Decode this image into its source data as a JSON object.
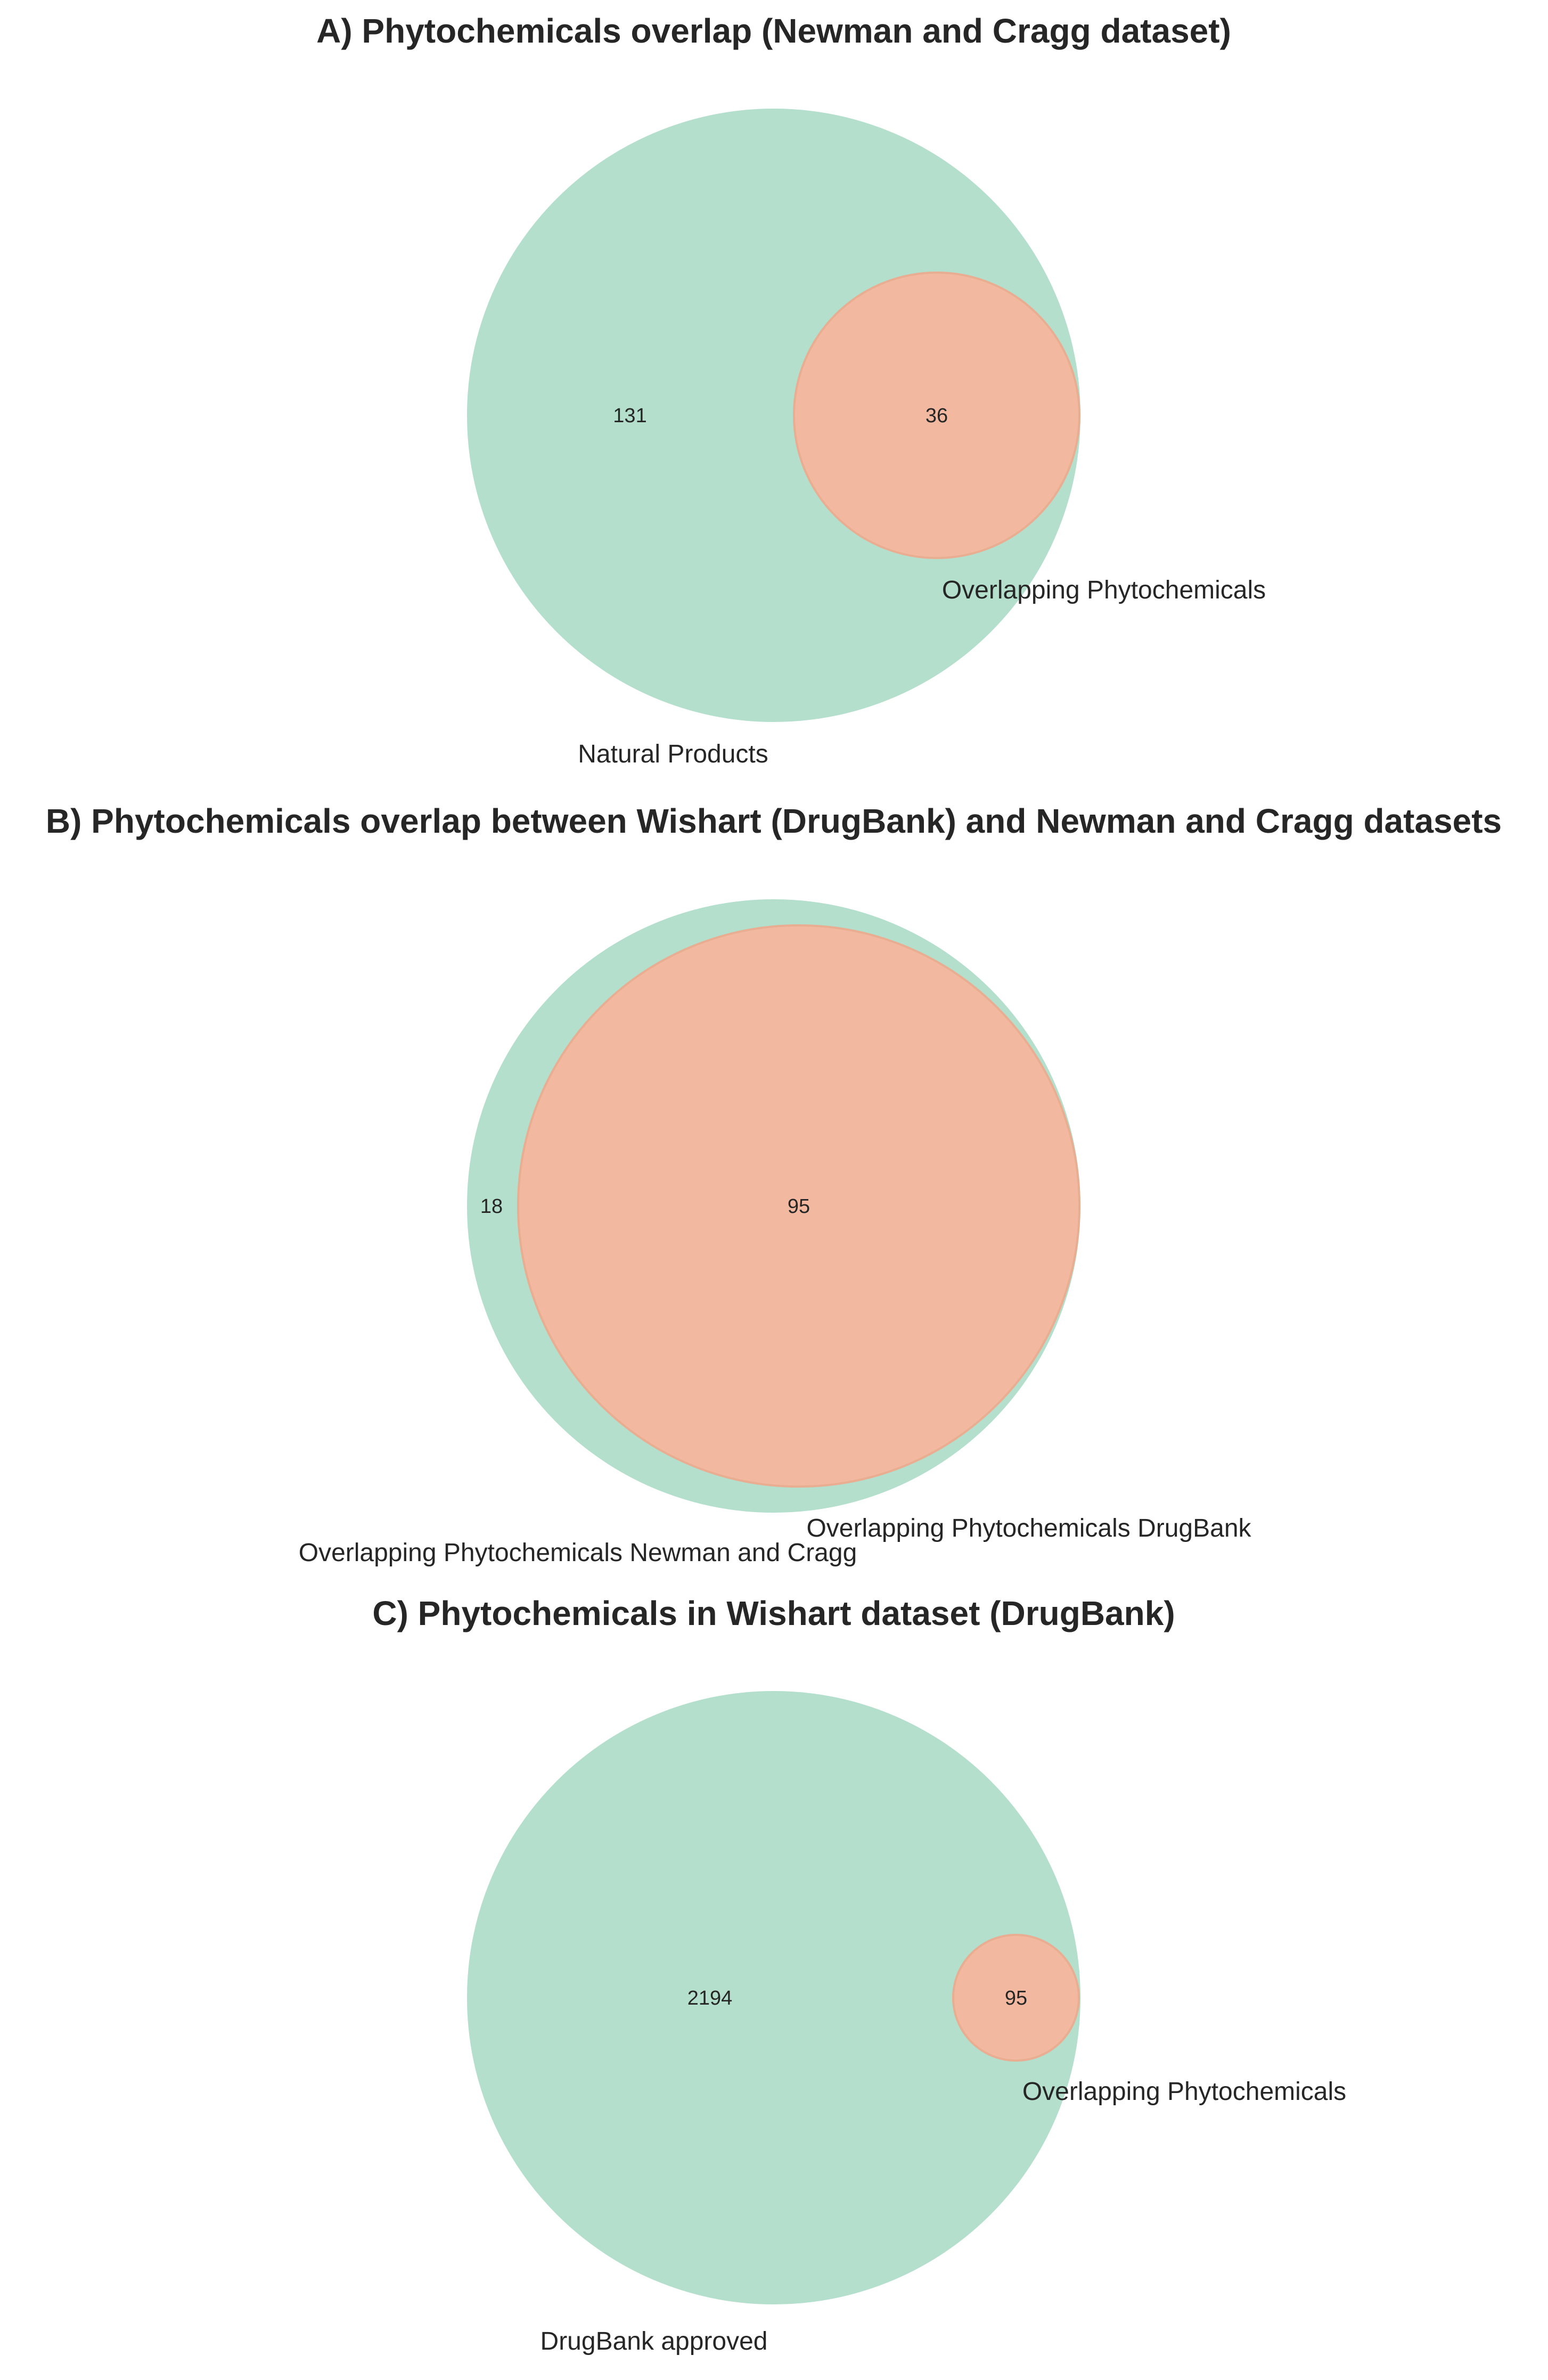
{
  "colors": {
    "set_a": "#b3dfcc",
    "set_b": "#f2b8a0",
    "set_b_stroke": "#e9ad91",
    "text": "#262626"
  },
  "panels": [
    {
      "title": "A) Phytochemicals overlap (Newman and Cragg dataset)",
      "set_a_label": "Natural Products",
      "set_b_label": "Overlapping Phytochemicals",
      "only_a": "131",
      "both": "36"
    },
    {
      "title": "B) Phytochemicals overlap between Wishart (DrugBank) and Newman and Cragg datasets",
      "set_a_label": "Overlapping Phytochemicals Newman and Cragg",
      "set_b_label": "Overlapping Phytochemicals DrugBank",
      "only_a": "18",
      "both": "95"
    },
    {
      "title": "C) Phytochemicals in Wishart dataset (DrugBank)",
      "set_a_label": "DrugBank approved",
      "set_b_label": "Overlapping Phytochemicals",
      "only_a": "2194",
      "both": "95"
    }
  ]
}
